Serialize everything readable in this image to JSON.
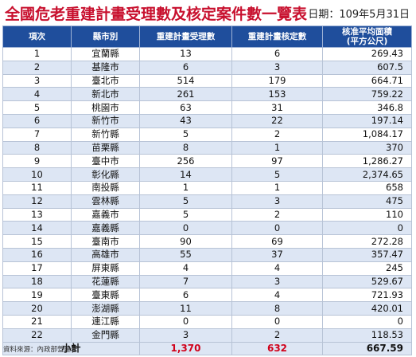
{
  "title": "全國危老重建計畫受理數及核定案件數一覽表",
  "date_label": "日期：109年5月31日",
  "columns": [
    "項次",
    "縣市別",
    "重建計畫受理數",
    "重建計畫核定數",
    "核准平均面積\n(平方公尺)"
  ],
  "rows": [
    {
      "no": "1",
      "city": "宜蘭縣",
      "received": "13",
      "approved": "6",
      "area": "269.43"
    },
    {
      "no": "2",
      "city": "基隆市",
      "received": "6",
      "approved": "3",
      "area": "607.5"
    },
    {
      "no": "3",
      "city": "臺北市",
      "received": "514",
      "approved": "179",
      "area": "664.71"
    },
    {
      "no": "4",
      "city": "新北市",
      "received": "261",
      "approved": "153",
      "area": "759.22"
    },
    {
      "no": "5",
      "city": "桃園市",
      "received": "63",
      "approved": "31",
      "area": "346.8"
    },
    {
      "no": "6",
      "city": "新竹市",
      "received": "43",
      "approved": "22",
      "area": "197.14"
    },
    {
      "no": "7",
      "city": "新竹縣",
      "received": "5",
      "approved": "2",
      "area": "1,084.17"
    },
    {
      "no": "8",
      "city": "苗栗縣",
      "received": "8",
      "approved": "1",
      "area": "370"
    },
    {
      "no": "9",
      "city": "臺中市",
      "received": "256",
      "approved": "97",
      "area": "1,286.27"
    },
    {
      "no": "10",
      "city": "彰化縣",
      "received": "14",
      "approved": "5",
      "area": "2,374.65"
    },
    {
      "no": "11",
      "city": "南投縣",
      "received": "1",
      "approved": "1",
      "area": "658"
    },
    {
      "no": "12",
      "city": "雲林縣",
      "received": "5",
      "approved": "3",
      "area": "475"
    },
    {
      "no": "13",
      "city": "嘉義市",
      "received": "5",
      "approved": "2",
      "area": "110"
    },
    {
      "no": "14",
      "city": "嘉義縣",
      "received": "0",
      "approved": "0",
      "area": "0"
    },
    {
      "no": "15",
      "city": "臺南市",
      "received": "90",
      "approved": "69",
      "area": "272.28"
    },
    {
      "no": "16",
      "city": "高雄市",
      "received": "55",
      "approved": "37",
      "area": "357.47"
    },
    {
      "no": "17",
      "city": "屏東縣",
      "received": "4",
      "approved": "4",
      "area": "245"
    },
    {
      "no": "18",
      "city": "花蓮縣",
      "received": "7",
      "approved": "3",
      "area": "529.67"
    },
    {
      "no": "19",
      "city": "臺東縣",
      "received": "6",
      "approved": "4",
      "area": "721.93"
    },
    {
      "no": "20",
      "city": "澎湖縣",
      "received": "11",
      "approved": "8",
      "area": "420.01"
    },
    {
      "no": "21",
      "city": "連江縣",
      "received": "0",
      "approved": "0",
      "area": "0"
    },
    {
      "no": "22",
      "city": "金門縣",
      "received": "3",
      "approved": "2",
      "area": "118.53"
    }
  ],
  "total": {
    "label": "小計",
    "received": "1,370",
    "approved": "632",
    "area": "667.59"
  },
  "source": "資料來源：內政部營建署",
  "colors": {
    "title": "#c8102e",
    "header_bg": "#1f4e9c",
    "alt_row": "#dde6f4",
    "total_red": "#d0021b"
  }
}
